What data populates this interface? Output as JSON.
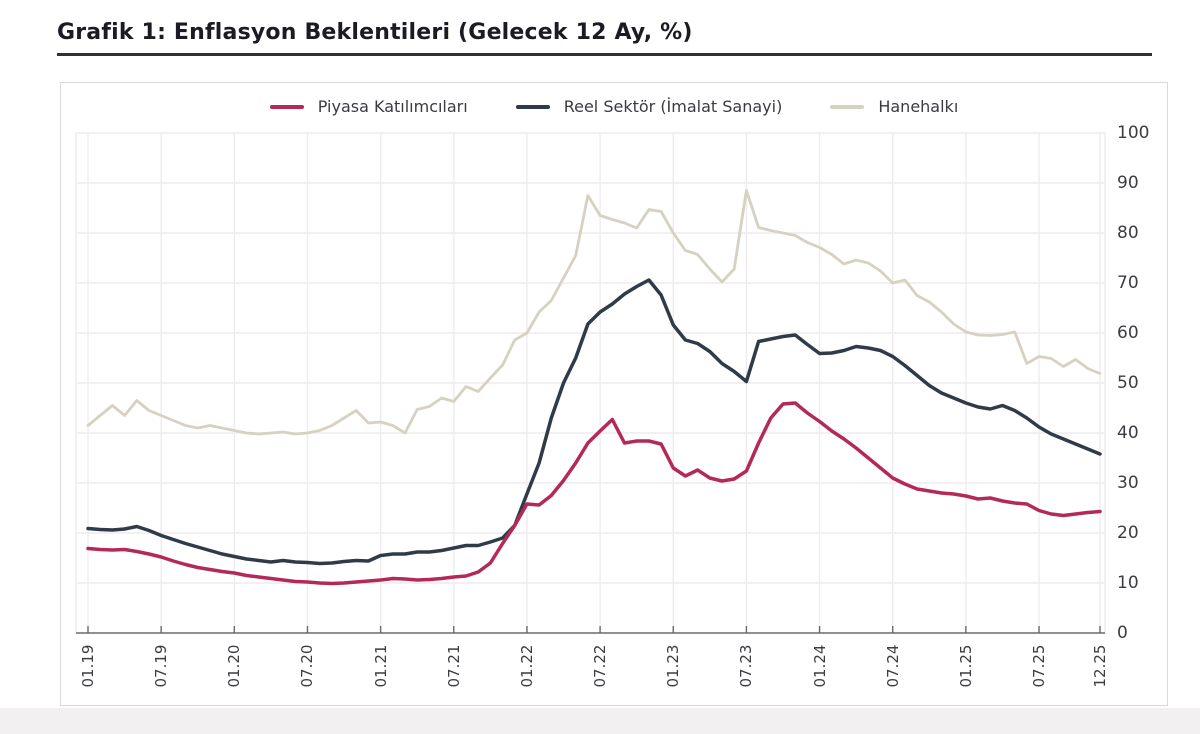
{
  "page": {
    "title": "Grafik 1: Enflasyon Beklentileri (Gelecek 12 Ay, %)"
  },
  "chart_data": {
    "type": "line",
    "title": "Grafik 1: Enflasyon Beklentileri (Gelecek 12 Ay, %)",
    "xlabel": "",
    "ylabel": "",
    "ylim": [
      0,
      100
    ],
    "y_ticks": [
      0,
      10,
      20,
      30,
      40,
      50,
      60,
      70,
      80,
      90,
      100
    ],
    "grid": true,
    "legend_position": "top",
    "x_frequency": "monthly",
    "x_range": "01.2019 - 12.2025",
    "x_tick_labels": [
      "01.19",
      "07.19",
      "01.20",
      "07.20",
      "01.21",
      "07.21",
      "01.22",
      "07.22",
      "01.23",
      "07.23",
      "01.24",
      "07.24",
      "01.25",
      "07.25",
      "12.25"
    ],
    "x_tick_month_index": [
      0,
      6,
      12,
      18,
      24,
      30,
      36,
      42,
      48,
      54,
      60,
      66,
      72,
      78,
      83
    ],
    "series": [
      {
        "name": "Piyasa Katılımcıları",
        "color": "#b42a56",
        "stroke_width": 3.5,
        "values": [
          16.9,
          16.7,
          16.6,
          16.7,
          16.3,
          15.8,
          15.2,
          14.4,
          13.7,
          13.1,
          12.7,
          12.3,
          12.0,
          11.5,
          11.2,
          10.9,
          10.6,
          10.3,
          10.2,
          10.0,
          9.9,
          10.0,
          10.2,
          10.4,
          10.6,
          10.9,
          10.8,
          10.6,
          10.7,
          10.9,
          11.2,
          11.4,
          12.2,
          14.0,
          17.9,
          21.5,
          25.8,
          25.6,
          27.5,
          30.5,
          34.0,
          38.0,
          40.4,
          42.7,
          38.0,
          38.4,
          38.4,
          37.8,
          33.0,
          31.4,
          32.6,
          31.0,
          30.4,
          30.8,
          32.4,
          38.0,
          43.0,
          45.8,
          46.0,
          44.0,
          42.3,
          40.4,
          38.8,
          37.0,
          35.0,
          33.0,
          31.0,
          29.8,
          28.8,
          28.4,
          28.0,
          27.8,
          27.4,
          26.8,
          27.0,
          26.4,
          26.0,
          25.8,
          24.5,
          23.8,
          23.5,
          23.8,
          24.1,
          24.3
        ]
      },
      {
        "name": "Reel Sektör (İmalat Sanayi)",
        "color": "#2f3b48",
        "stroke_width": 3.5,
        "values": [
          20.9,
          20.7,
          20.6,
          20.8,
          21.3,
          20.5,
          19.5,
          18.7,
          17.9,
          17.2,
          16.5,
          15.8,
          15.3,
          14.8,
          14.5,
          14.2,
          14.5,
          14.2,
          14.1,
          13.9,
          14.0,
          14.3,
          14.5,
          14.4,
          15.5,
          15.8,
          15.8,
          16.2,
          16.2,
          16.5,
          17.0,
          17.5,
          17.5,
          18.2,
          19.0,
          21.5,
          27.8,
          34.0,
          43.0,
          50.0,
          55.0,
          61.8,
          64.2,
          65.8,
          67.8,
          69.3,
          70.6,
          67.6,
          61.6,
          58.6,
          57.9,
          56.3,
          53.9,
          52.3,
          50.3,
          58.3,
          58.8,
          59.3,
          59.6,
          57.7,
          55.9,
          56.0,
          56.5,
          57.3,
          57.0,
          56.5,
          55.3,
          53.5,
          51.5,
          49.5,
          48.0,
          47.0,
          46.0,
          45.2,
          44.8,
          45.5,
          44.5,
          43.0,
          41.2,
          39.8,
          38.8,
          37.8,
          36.8,
          35.8
        ]
      },
      {
        "name": "Hanehalkı",
        "color": "#d7d1c0",
        "stroke_width": 2.8,
        "values": [
          41.5,
          43.5,
          45.5,
          43.5,
          46.5,
          44.5,
          43.5,
          42.5,
          41.5,
          41.0,
          41.5,
          41.0,
          40.5,
          40.0,
          39.8,
          40.0,
          40.2,
          39.8,
          40.0,
          40.5,
          41.5,
          43.0,
          44.5,
          42.0,
          42.2,
          41.5,
          40.0,
          44.7,
          45.3,
          47.0,
          46.3,
          49.3,
          48.3,
          51.0,
          53.6,
          58.6,
          60.0,
          64.2,
          66.5,
          71.0,
          75.5,
          87.5,
          83.5,
          82.7,
          82.0,
          81.0,
          84.7,
          84.3,
          80.0,
          76.5,
          75.7,
          72.8,
          70.2,
          72.8,
          88.5,
          81.1,
          80.5,
          80.0,
          79.5,
          78.1,
          77.1,
          75.7,
          73.8,
          74.6,
          74.0,
          72.4,
          70.0,
          70.6,
          67.5,
          66.2,
          64.2,
          61.8,
          60.2,
          59.6,
          59.5,
          59.7,
          60.2,
          53.9,
          55.3,
          54.9,
          53.3,
          54.7,
          52.9,
          51.9
        ]
      }
    ],
    "colors": {
      "grid": "#efecee",
      "plot_border": "#e4e1e3",
      "axis": "#6b6b6b",
      "tick_text": "#3c3c42",
      "title_text": "#1b1b24",
      "title_rule": "#2f2f35",
      "card_border": "#dadada"
    }
  }
}
